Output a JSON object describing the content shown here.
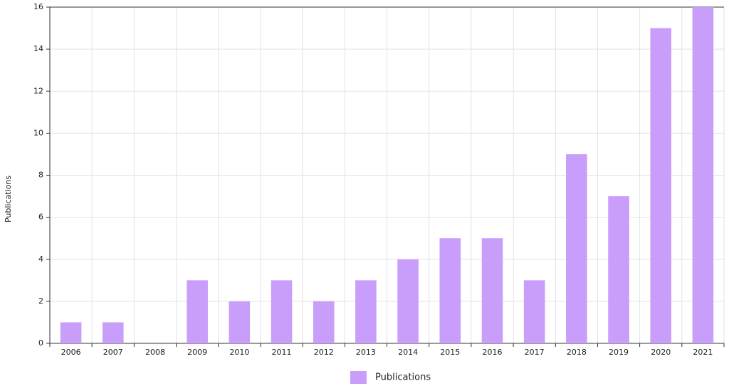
{
  "chart_data": {
    "type": "bar",
    "y_label": "Publications",
    "categories": [
      "2006",
      "2007",
      "2008",
      "2009",
      "2010",
      "2011",
      "2012",
      "2013",
      "2014",
      "2015",
      "2016",
      "2017",
      "2018",
      "2019",
      "2020",
      "2021"
    ],
    "series": [
      {
        "name": "Publications",
        "color": "#c99dfa",
        "values": [
          1,
          1,
          0,
          3,
          2,
          3,
          2,
          3,
          4,
          5,
          5,
          3,
          9,
          7,
          15,
          16
        ]
      }
    ],
    "ylim": [
      0,
      16
    ],
    "yticks": [
      0,
      2,
      4,
      6,
      8,
      10,
      12,
      14,
      16
    ],
    "grid": true,
    "legend": "bottom"
  }
}
